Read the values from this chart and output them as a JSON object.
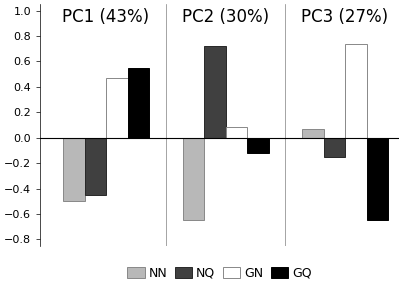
{
  "pc_labels": [
    "PC1 (43%)",
    "PC2 (30%)",
    "PC3 (27%)"
  ],
  "group_labels": [
    "NN",
    "NQ",
    "GN",
    "GQ"
  ],
  "values": [
    [
      -0.5,
      -0.45,
      0.47,
      0.55
    ],
    [
      -0.65,
      0.72,
      0.08,
      -0.12
    ],
    [
      0.07,
      -0.15,
      0.74,
      -0.65
    ]
  ],
  "colors": [
    "#b8b8b8",
    "#404040",
    "#ffffff",
    "#000000"
  ],
  "edgecolors": [
    "#888888",
    "#282828",
    "#888888",
    "#000000"
  ],
  "ylim": [
    -0.85,
    1.05
  ],
  "yticks": [
    -0.8,
    -0.6,
    -0.4,
    -0.2,
    0.0,
    0.2,
    0.4,
    0.6,
    0.8,
    1.0
  ],
  "background_color": "#ffffff",
  "bar_width": 0.18,
  "title_fontsize": 12,
  "legend_fontsize": 9,
  "tick_fontsize": 8,
  "pc_centers": [
    0.45,
    1.45,
    2.45
  ],
  "xlim": [
    -0.1,
    2.9
  ]
}
